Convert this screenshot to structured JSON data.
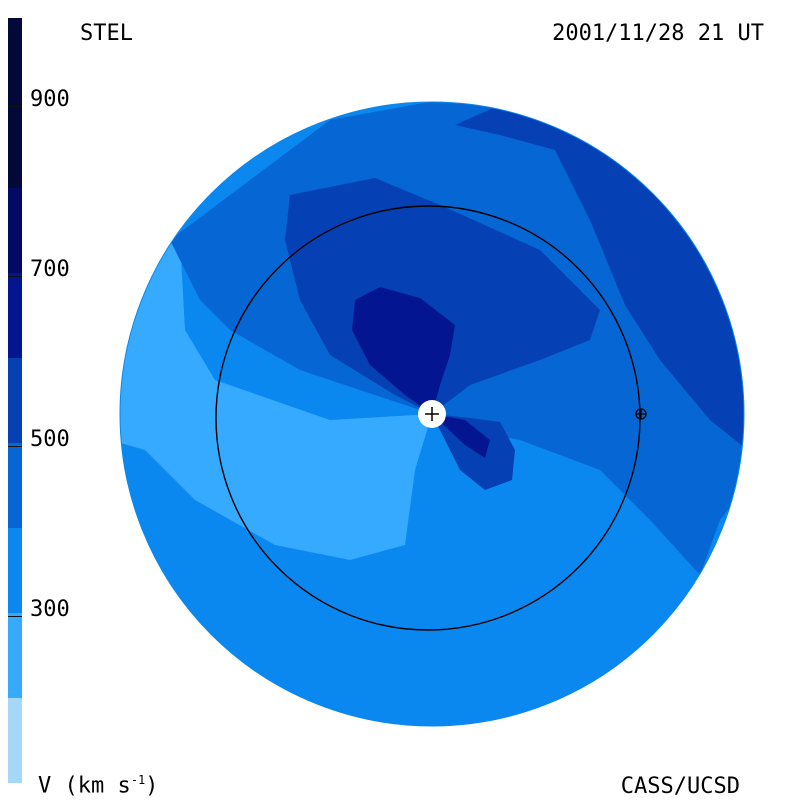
{
  "header": {
    "source": "STEL",
    "timestamp": "2001/11/28 21 UT"
  },
  "footer": {
    "credit": "CASS/UCSD",
    "unit_prefix": "V (km s",
    "unit_exp": "-1",
    "unit_suffix": ")"
  },
  "colorbar": {
    "ticks": [
      "900",
      "700",
      "500",
      "300"
    ],
    "tick_values": [
      900,
      700,
      500,
      300
    ],
    "range": [
      100,
      1000
    ],
    "levels": [
      {
        "from": 100,
        "to": 200,
        "color": "#a5d8f8"
      },
      {
        "from": 200,
        "to": 300,
        "color": "#35aaff"
      },
      {
        "from": 300,
        "to": 400,
        "color": "#0a88ef"
      },
      {
        "from": 400,
        "to": 500,
        "color": "#0566d4"
      },
      {
        "from": 500,
        "to": 600,
        "color": "#0540b4"
      },
      {
        "from": 600,
        "to": 700,
        "color": "#041591"
      },
      {
        "from": 700,
        "to": 800,
        "color": "#030a66"
      },
      {
        "from": 800,
        "to": 1000,
        "color": "#020838"
      }
    ]
  },
  "map": {
    "center_marker": "plus-symbol",
    "earth_marker": "earth-symbol",
    "circle": "earth-orbit"
  }
}
